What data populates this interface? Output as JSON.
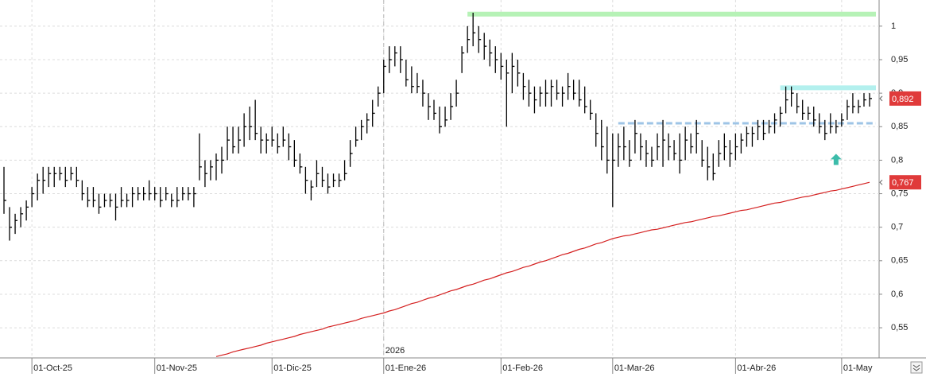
{
  "chart_data": {
    "type": "hlc",
    "categories": [
      null,
      null,
      null,
      null,
      null,
      "01-Oct-25",
      null,
      null,
      null,
      null,
      null,
      null,
      null,
      null,
      null,
      null,
      null,
      null,
      null,
      null,
      null,
      null,
      null,
      null,
      null,
      null,
      null,
      "01-Nov-25",
      null,
      null,
      null,
      null,
      null,
      null,
      null,
      null,
      null,
      null,
      null,
      null,
      null,
      null,
      null,
      null,
      null,
      null,
      null,
      null,
      "01-Dic-25",
      null,
      null,
      null,
      null,
      null,
      null,
      null,
      null,
      null,
      null,
      null,
      null,
      null,
      null,
      null,
      null,
      null,
      null,
      null,
      "01-Ene-26",
      null,
      null,
      null,
      null,
      null,
      null,
      null,
      null,
      null,
      null,
      null,
      null,
      null,
      null,
      null,
      null,
      null,
      null,
      null,
      null,
      "01-Feb-26",
      null,
      null,
      null,
      null,
      null,
      null,
      null,
      null,
      null,
      null,
      null,
      null,
      null,
      null,
      null,
      null,
      null,
      null,
      null,
      "01-Mar-26",
      null,
      null,
      null,
      null,
      null,
      null,
      null,
      null,
      null,
      null,
      null,
      null,
      null,
      null,
      null,
      null,
      null,
      null,
      null,
      null,
      null,
      "01-Abr-26",
      null,
      null,
      null,
      null,
      null,
      null,
      null,
      null,
      null,
      null,
      null,
      null,
      null,
      null,
      null,
      null,
      null,
      null,
      "01-May",
      null,
      null,
      null,
      null,
      null
    ],
    "price": {
      "color": "#000000",
      "high": [
        0.79,
        0.73,
        0.72,
        0.73,
        0.74,
        0.76,
        0.78,
        0.79,
        0.79,
        0.79,
        0.79,
        0.79,
        0.79,
        0.79,
        0.77,
        0.76,
        0.76,
        0.75,
        0.75,
        0.75,
        0.75,
        0.76,
        0.75,
        0.76,
        0.76,
        0.76,
        0.77,
        0.76,
        0.76,
        0.76,
        0.75,
        0.76,
        0.76,
        0.76,
        0.76,
        0.84,
        0.8,
        0.8,
        0.81,
        0.82,
        0.85,
        0.85,
        0.85,
        0.87,
        0.88,
        0.89,
        0.85,
        0.84,
        0.85,
        0.84,
        0.85,
        0.84,
        0.83,
        0.81,
        0.79,
        0.77,
        0.8,
        0.79,
        0.78,
        0.78,
        0.78,
        0.8,
        0.83,
        0.85,
        0.86,
        0.87,
        0.89,
        0.91,
        0.95,
        0.97,
        0.97,
        0.97,
        0.95,
        0.94,
        0.93,
        0.92,
        0.9,
        0.89,
        0.88,
        0.88,
        0.9,
        0.92,
        0.97,
        1.0,
        1.02,
        1.0,
        0.99,
        0.98,
        0.97,
        0.96,
        0.95,
        0.96,
        0.95,
        0.93,
        0.92,
        0.91,
        0.91,
        0.92,
        0.92,
        0.92,
        0.91,
        0.93,
        0.92,
        0.92,
        0.91,
        0.89,
        0.87,
        0.86,
        0.85,
        0.84,
        0.84,
        0.85,
        0.83,
        0.86,
        0.84,
        0.83,
        0.82,
        0.84,
        0.86,
        0.84,
        0.83,
        0.84,
        0.85,
        0.84,
        0.86,
        0.83,
        0.82,
        0.81,
        0.83,
        0.84,
        0.83,
        0.84,
        0.84,
        0.85,
        0.85,
        0.86,
        0.86,
        0.86,
        0.87,
        0.88,
        0.91,
        0.91,
        0.9,
        0.89,
        0.88,
        0.88,
        0.87,
        0.86,
        0.87,
        0.86,
        0.87,
        0.89,
        0.9,
        0.89,
        0.9,
        0.9
      ],
      "low": [
        0.72,
        0.68,
        0.69,
        0.7,
        0.71,
        0.73,
        0.74,
        0.75,
        0.76,
        0.76,
        0.77,
        0.76,
        0.77,
        0.76,
        0.74,
        0.73,
        0.73,
        0.72,
        0.73,
        0.73,
        0.71,
        0.73,
        0.73,
        0.73,
        0.74,
        0.74,
        0.74,
        0.74,
        0.73,
        0.74,
        0.73,
        0.73,
        0.74,
        0.74,
        0.73,
        0.77,
        0.76,
        0.77,
        0.77,
        0.78,
        0.8,
        0.81,
        0.81,
        0.82,
        0.83,
        0.83,
        0.81,
        0.81,
        0.82,
        0.81,
        0.82,
        0.8,
        0.79,
        0.78,
        0.75,
        0.74,
        0.76,
        0.76,
        0.75,
        0.76,
        0.76,
        0.77,
        0.79,
        0.82,
        0.83,
        0.84,
        0.85,
        0.88,
        0.9,
        0.93,
        0.94,
        0.93,
        0.91,
        0.9,
        0.9,
        0.88,
        0.86,
        0.86,
        0.84,
        0.85,
        0.86,
        0.88,
        0.93,
        0.96,
        0.97,
        0.96,
        0.95,
        0.94,
        0.93,
        0.92,
        0.85,
        0.9,
        0.91,
        0.89,
        0.88,
        0.87,
        0.88,
        0.88,
        0.88,
        0.89,
        0.88,
        0.89,
        0.89,
        0.88,
        0.87,
        0.86,
        0.82,
        0.8,
        0.78,
        0.73,
        0.79,
        0.8,
        0.79,
        0.81,
        0.8,
        0.79,
        0.79,
        0.8,
        0.79,
        0.8,
        0.8,
        0.78,
        0.8,
        0.81,
        0.81,
        0.79,
        0.77,
        0.77,
        0.79,
        0.8,
        0.79,
        0.8,
        0.81,
        0.82,
        0.82,
        0.83,
        0.83,
        0.84,
        0.84,
        0.85,
        0.87,
        0.88,
        0.87,
        0.86,
        0.86,
        0.85,
        0.84,
        0.83,
        0.84,
        0.84,
        0.85,
        0.86,
        0.87,
        0.87,
        0.88,
        0.88
      ],
      "close": [
        0.74,
        0.7,
        0.71,
        0.72,
        0.73,
        0.75,
        0.77,
        0.77,
        0.78,
        0.78,
        0.78,
        0.77,
        0.78,
        0.77,
        0.75,
        0.74,
        0.74,
        0.73,
        0.74,
        0.74,
        0.73,
        0.74,
        0.74,
        0.75,
        0.75,
        0.75,
        0.75,
        0.75,
        0.74,
        0.75,
        0.74,
        0.74,
        0.75,
        0.75,
        0.75,
        0.79,
        0.78,
        0.79,
        0.8,
        0.8,
        0.83,
        0.82,
        0.83,
        0.85,
        0.85,
        0.84,
        0.83,
        0.83,
        0.83,
        0.82,
        0.83,
        0.82,
        0.8,
        0.79,
        0.77,
        0.76,
        0.78,
        0.77,
        0.76,
        0.77,
        0.77,
        0.78,
        0.81,
        0.83,
        0.85,
        0.86,
        0.87,
        0.9,
        0.94,
        0.95,
        0.96,
        0.95,
        0.92,
        0.91,
        0.91,
        0.9,
        0.88,
        0.87,
        0.85,
        0.86,
        0.88,
        0.9,
        0.96,
        0.98,
        0.99,
        0.98,
        0.97,
        0.96,
        0.95,
        0.94,
        0.93,
        0.94,
        0.93,
        0.91,
        0.9,
        0.89,
        0.9,
        0.9,
        0.91,
        0.9,
        0.9,
        0.91,
        0.9,
        0.89,
        0.88,
        0.87,
        0.84,
        0.82,
        0.8,
        0.8,
        0.82,
        0.82,
        0.8,
        0.84,
        0.82,
        0.81,
        0.8,
        0.82,
        0.83,
        0.82,
        0.81,
        0.8,
        0.83,
        0.82,
        0.84,
        0.8,
        0.79,
        0.78,
        0.81,
        0.82,
        0.81,
        0.82,
        0.83,
        0.84,
        0.84,
        0.85,
        0.84,
        0.85,
        0.86,
        0.87,
        0.89,
        0.9,
        0.88,
        0.87,
        0.87,
        0.86,
        0.85,
        0.84,
        0.85,
        0.85,
        0.86,
        0.88,
        0.88,
        0.88,
        0.89,
        0.892
      ],
      "last_label": "0,892",
      "label_color": "#e03a3a"
    },
    "moving_average": {
      "color": "#d42020",
      "label_color": "#e03a3a",
      "last_label": "0,767",
      "values": [
        null,
        null,
        null,
        null,
        null,
        null,
        null,
        null,
        null,
        null,
        null,
        null,
        null,
        null,
        null,
        null,
        null,
        null,
        null,
        null,
        null,
        null,
        null,
        null,
        null,
        null,
        null,
        null,
        null,
        null,
        null,
        null,
        null,
        null,
        null,
        null,
        null,
        null,
        0.507,
        0.509,
        0.511,
        0.514,
        0.516,
        0.518,
        0.52,
        0.522,
        0.524,
        0.527,
        0.529,
        0.531,
        0.533,
        0.535,
        0.537,
        0.54,
        0.542,
        0.544,
        0.546,
        0.548,
        0.551,
        0.553,
        0.555,
        0.557,
        0.559,
        0.561,
        0.564,
        0.566,
        0.568,
        0.57,
        0.572,
        0.575,
        0.577,
        0.58,
        0.583,
        0.586,
        0.588,
        0.591,
        0.594,
        0.596,
        0.599,
        0.602,
        0.605,
        0.607,
        0.61,
        0.613,
        0.615,
        0.618,
        0.621,
        0.623,
        0.626,
        0.629,
        0.632,
        0.634,
        0.637,
        0.64,
        0.642,
        0.645,
        0.648,
        0.65,
        0.653,
        0.656,
        0.659,
        0.661,
        0.664,
        0.667,
        0.669,
        0.672,
        0.675,
        0.677,
        0.68,
        0.683,
        0.685,
        0.687,
        0.688,
        0.69,
        0.692,
        0.694,
        0.696,
        0.697,
        0.699,
        0.701,
        0.703,
        0.705,
        0.707,
        0.708,
        0.71,
        0.712,
        0.714,
        0.716,
        0.717,
        0.719,
        0.721,
        0.723,
        0.725,
        0.726,
        0.728,
        0.73,
        0.732,
        0.734,
        0.736,
        0.737,
        0.739,
        0.741,
        0.743,
        0.745,
        0.746,
        0.748,
        0.75,
        0.752,
        0.754,
        0.755,
        0.757,
        0.759,
        0.761,
        0.763,
        0.765,
        0.767
      ]
    },
    "levels": [
      {
        "value": 1.018,
        "from": 83,
        "to": 155,
        "color": "#b6f2b6",
        "dashed": false
      },
      {
        "value": 0.908,
        "from": 139,
        "to": 155,
        "color": "#b3f0ee",
        "dashed": false
      },
      {
        "value": 0.855,
        "from": 110,
        "to": 155,
        "color": "#9ec4e6",
        "dashed": true
      }
    ],
    "arrow": {
      "index": 149,
      "value": 0.8,
      "color": "#3cbcaa"
    },
    "year_marker": {
      "label": "2026",
      "index": 68
    },
    "ylim": [
      0.505,
      1.039
    ],
    "yticks": [
      1,
      {
        "value": 0.95,
        "label": "0,95"
      },
      {
        "value": 0.9,
        "label": "0,9"
      },
      {
        "value": 0.85,
        "label": "0,85"
      },
      {
        "value": 0.8,
        "label": "0,8"
      },
      {
        "value": 0.75,
        "label": "0,75"
      },
      {
        "value": 0.7,
        "label": "0,7"
      },
      {
        "value": 0.65,
        "label": "0,65"
      },
      {
        "value": 0.6,
        "label": "0,6"
      },
      {
        "value": 0.55,
        "label": "0,55"
      }
    ],
    "grid": true
  }
}
